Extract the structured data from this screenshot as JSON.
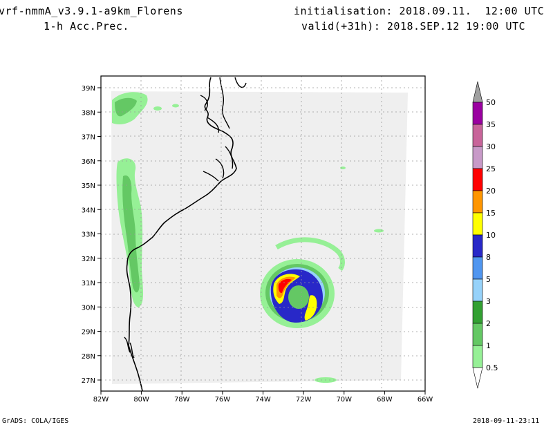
{
  "header": {
    "model": "vrf-nmmA_v3.9.1-a9km_Florens",
    "field": "1-h Acc.Prec.",
    "init": "initialisation: 2018.09.11.  12:00 UTC",
    "valid": "valid(+31h): 2018.SEP.12 19:00 UTC"
  },
  "map": {
    "lon_ticks": [
      "82W",
      "80W",
      "78W",
      "76W",
      "74W",
      "72W",
      "70W",
      "68W",
      "66W"
    ],
    "lat_ticks": [
      "39N",
      "38N",
      "37N",
      "36N",
      "35N",
      "34N",
      "33N",
      "32N",
      "31N",
      "30N",
      "29N",
      "28N",
      "27N"
    ],
    "lon_range": [
      -82,
      -66
    ],
    "lat_range": [
      26.5,
      39.5
    ]
  },
  "colorbar": {
    "levels": [
      "50",
      "35",
      "30",
      "25",
      "20",
      "15",
      "10",
      "8",
      "5",
      "3",
      "2",
      "1",
      "0.5"
    ],
    "colors": [
      "#9a00a0",
      "#c8649a",
      "#c89ac8",
      "#ff0000",
      "#ff9600",
      "#ffff00",
      "#2828c8",
      "#5096f0",
      "#96d2fa",
      "#32a032",
      "#64c864",
      "#96f096"
    ],
    "over_color": "#a0a0a0"
  },
  "footer": {
    "left": "GrADS: COLA/IGES",
    "right": "2018-09-11-23:11"
  }
}
